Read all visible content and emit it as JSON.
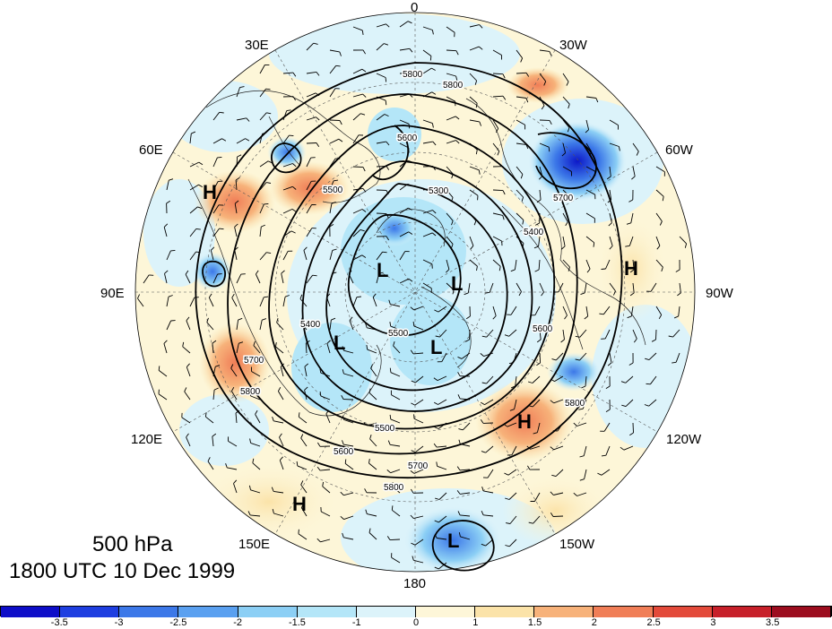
{
  "title": {
    "level": "500 hPa",
    "datetime": "1800 UTC 10 Dec 1999"
  },
  "longitude_labels": {
    "top": "0",
    "upper_left_1": "30E",
    "upper_right_1": "30W",
    "left_upper": "60E",
    "right_upper": "60W",
    "left": "90E",
    "right": "90W",
    "left_lower": "120E",
    "right_lower": "120W",
    "lower_left": "150E",
    "lower_right": "150W",
    "bottom": "180"
  },
  "pressure_centers": [
    {
      "label": "H",
      "id": "h-60e"
    },
    {
      "label": "H",
      "id": "h-90w"
    },
    {
      "label": "H",
      "id": "h-120w"
    },
    {
      "label": "H",
      "id": "h-150e"
    },
    {
      "label": "L",
      "id": "l-center-1"
    },
    {
      "label": "L",
      "id": "l-center-2"
    },
    {
      "label": "L",
      "id": "l-center-3"
    },
    {
      "label": "L",
      "id": "l-center-4"
    },
    {
      "label": "L",
      "id": "l-pacific"
    }
  ],
  "contour_labels": [
    "5800",
    "5800",
    "5600",
    "5500",
    "5300",
    "5400",
    "5400",
    "5500",
    "5700",
    "5800",
    "5500",
    "5600",
    "5700",
    "5800",
    "5800",
    "5700",
    "5600"
  ],
  "colorbar": {
    "labels": [
      "-3.5",
      "-3",
      "-2.5",
      "-2",
      "-1.5",
      "-1",
      "0",
      "1",
      "1.5",
      "2",
      "2.5",
      "3",
      "3.5"
    ],
    "colors": [
      "#0d0dc8",
      "#1e3ee0",
      "#3c78e8",
      "#5aa0f0",
      "#8ccff5",
      "#b4e6f8",
      "#dcf3fa",
      "#fdf6d8",
      "#fbe3a9",
      "#f7b27a",
      "#f07e57",
      "#e34a3a",
      "#c7202a",
      "#9c0d1f"
    ]
  }
}
